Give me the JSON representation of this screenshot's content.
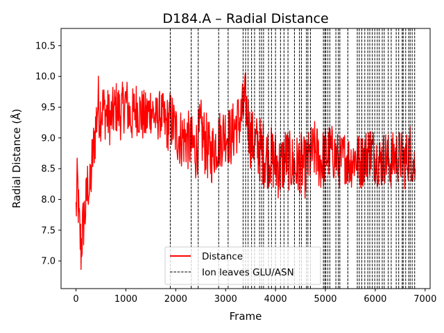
{
  "chart_data": {
    "type": "line",
    "title": "D184.A – Radial Distance",
    "xlabel": "Frame",
    "ylabel": "Radial Distance (Å)",
    "xlim": [
      -300,
      7100
    ],
    "ylim": [
      6.55,
      10.78
    ],
    "x_ticks": [
      0,
      1000,
      2000,
      3000,
      4000,
      5000,
      6000,
      7000
    ],
    "y_ticks": [
      7.0,
      7.5,
      8.0,
      8.5,
      9.0,
      9.5,
      10.0,
      10.5
    ],
    "grid": false,
    "legend_position": "lower center",
    "series": [
      {
        "name": "Distance",
        "color": "#ff0000",
        "style": "solid",
        "x": [
          0,
          30,
          60,
          100,
          130,
          160,
          200,
          240,
          280,
          320,
          360,
          400,
          440,
          480,
          520,
          600,
          700,
          800,
          900,
          1000,
          1100,
          1200,
          1300,
          1400,
          1500,
          1600,
          1700,
          1800,
          1900,
          2000,
          2100,
          2200,
          2300,
          2400,
          2500,
          2600,
          2700,
          2800,
          2900,
          3000,
          3100,
          3200,
          3300,
          3400,
          3500,
          3600,
          3700,
          3800,
          3900,
          4000,
          4100,
          4200,
          4300,
          4400,
          4500,
          4600,
          4700,
          4800,
          4900,
          5000,
          5100,
          5200,
          5300,
          5400,
          5500,
          5600,
          5700,
          5800,
          5900,
          6000,
          6100,
          6200,
          6300,
          6400,
          6500,
          6600,
          6700,
          6800
        ],
        "y": [
          7.8,
          8.3,
          7.6,
          7.2,
          7.5,
          7.7,
          7.9,
          8.3,
          8.1,
          8.6,
          8.9,
          9.2,
          9.6,
          9.4,
          9.5,
          9.4,
          9.3,
          9.5,
          9.4,
          9.6,
          9.3,
          9.5,
          9.4,
          9.3,
          9.5,
          9.3,
          9.4,
          9.2,
          9.3,
          9.1,
          9.0,
          9.0,
          8.9,
          8.8,
          9.1,
          8.9,
          8.7,
          8.9,
          9.0,
          9.1,
          9.0,
          9.2,
          9.3,
          9.6,
          9.0,
          8.9,
          8.8,
          8.7,
          8.7,
          8.6,
          8.5,
          8.7,
          8.6,
          8.5,
          8.6,
          8.5,
          8.7,
          8.8,
          8.6,
          8.7,
          8.8,
          8.7,
          8.6,
          8.7,
          8.6,
          8.7,
          8.6,
          8.7,
          8.8,
          8.7,
          8.6,
          8.7,
          8.6,
          8.7,
          8.7,
          8.6,
          8.8,
          8.5
        ],
        "noise": [
          0.5,
          0.5,
          0.5,
          0.55,
          0.5,
          0.5,
          0.5,
          0.5,
          0.5,
          0.5,
          0.45,
          0.55,
          0.5,
          0.5,
          0.5,
          0.45,
          0.45,
          0.45,
          0.45,
          0.45,
          0.45,
          0.45,
          0.45,
          0.45,
          0.45,
          0.4,
          0.4,
          0.45,
          0.5,
          0.5,
          0.5,
          0.5,
          0.5,
          0.5,
          0.55,
          0.55,
          0.5,
          0.5,
          0.5,
          0.5,
          0.5,
          0.5,
          0.5,
          0.5,
          0.5,
          0.5,
          0.55,
          0.55,
          0.5,
          0.55,
          0.55,
          0.5,
          0.5,
          0.55,
          0.5,
          0.5,
          0.5,
          0.5,
          0.5,
          0.5,
          0.45,
          0.45,
          0.45,
          0.45,
          0.45,
          0.45,
          0.45,
          0.45,
          0.45,
          0.45,
          0.45,
          0.45,
          0.45,
          0.45,
          0.45,
          0.45,
          0.45,
          0.45
        ]
      },
      {
        "name": "Ion leaves GLU/ASN",
        "color": "#000000",
        "style": "dashed",
        "type": "vlines",
        "x": [
          1890,
          2310,
          2450,
          2860,
          3050,
          3350,
          3400,
          3450,
          3520,
          3580,
          3680,
          3720,
          3760,
          3860,
          3920,
          4000,
          4100,
          4170,
          4250,
          4380,
          4480,
          4520,
          4620,
          4650,
          4700,
          4960,
          4990,
          5010,
          5050,
          5090,
          5210,
          5260,
          5290,
          5450,
          5640,
          5680,
          5730,
          5790,
          5850,
          5890,
          5940,
          5990,
          6040,
          6080,
          6140,
          6180,
          6260,
          6320,
          6420,
          6470,
          6540,
          6560,
          6610,
          6670,
          6700,
          6740,
          6790
        ]
      }
    ]
  }
}
